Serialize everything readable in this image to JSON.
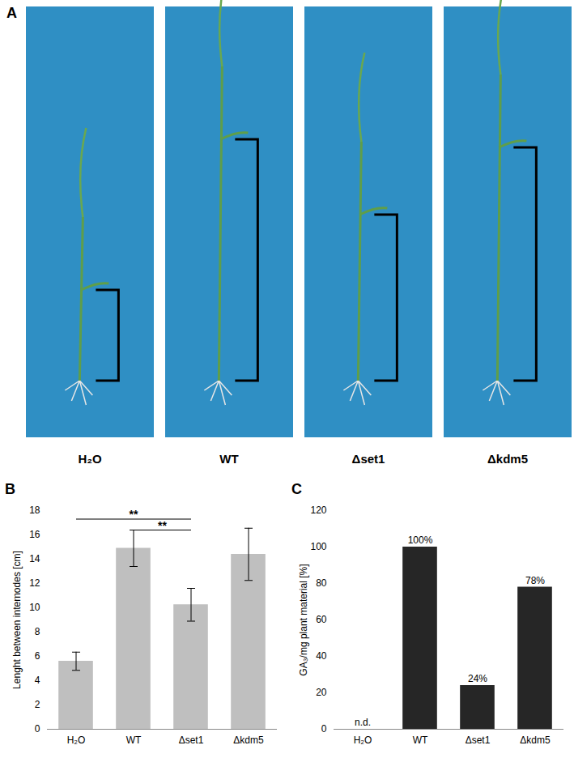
{
  "panel_a": {
    "label": "A",
    "labels": [
      "H₂O",
      "WT",
      "Δset1",
      "Δkdm5"
    ]
  },
  "chart_data": [
    {
      "type": "bar",
      "title": "B",
      "categories": [
        "H₂O",
        "WT",
        "Δset1",
        "Δkdm5"
      ],
      "values": [
        5.6,
        14.9,
        10.25,
        14.4
      ],
      "errors": [
        0.75,
        1.5,
        1.35,
        2.15
      ],
      "y_label": "Lenght between internodes [cm]",
      "ylim": [
        0,
        18
      ],
      "yticks": [
        0,
        2,
        4,
        6,
        8,
        10,
        12,
        14,
        16,
        18
      ],
      "color": "#bfbfbf",
      "annotations": [
        {
          "from": "H₂O",
          "to": "Δset1",
          "text": "**",
          "y": 17.3
        },
        {
          "from": "WT",
          "to": "Δset1",
          "text": "**",
          "y": 16.4
        }
      ]
    },
    {
      "type": "bar",
      "title": "C",
      "categories": [
        "H₂O",
        "WT",
        "Δset1",
        "Δkdm5"
      ],
      "values": [
        null,
        100,
        24,
        78
      ],
      "value_labels": [
        "n.d.",
        "100%",
        "24%",
        "78%"
      ],
      "data_labels": true,
      "y_label": "GA₃/mg plant material [%]",
      "ylim": [
        0,
        120
      ],
      "yticks": [
        0,
        20,
        40,
        60,
        80,
        100,
        120
      ],
      "color": "#262626"
    }
  ]
}
